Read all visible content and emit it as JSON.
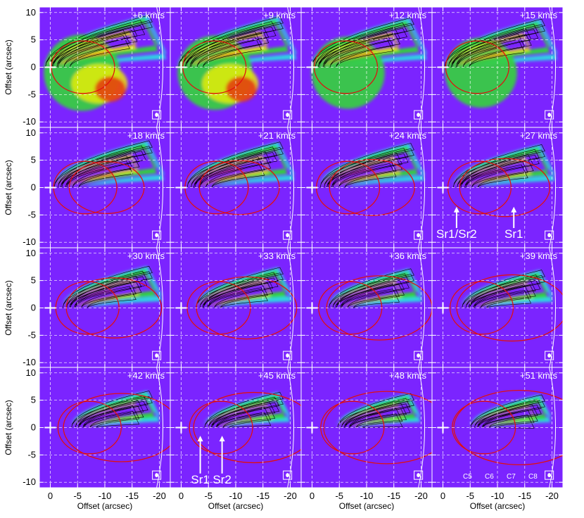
{
  "chart_data": {
    "type": "heatmap",
    "layout": {
      "rows": 4,
      "cols": 4
    },
    "xlabel": "Offset (arcsec)",
    "ylabel": "Offset (arcsec)",
    "xlim": [
      2,
      -22
    ],
    "ylim": [
      -11,
      11
    ],
    "xticks": [
      0,
      -5,
      -10,
      -15,
      -20
    ],
    "xtick_labels": [
      "0",
      "-5",
      "-10",
      "-15",
      "-20"
    ],
    "yticks": [
      -10,
      -5,
      0,
      5,
      10
    ],
    "ytick_labels": [
      "-10",
      "-5",
      "0",
      "5",
      "10"
    ],
    "grid": "dashed at ticks",
    "colors": {
      "background": "#7b24ff",
      "level_low": "#26e3e0",
      "level_mid": "#33d43a",
      "level_high": "#f0f000",
      "level_peak": "#e62a12",
      "ellipse": "#e01010",
      "contour": "#000000"
    },
    "panels": [
      {
        "label": "+6 km/s",
        "velocity": 6
      },
      {
        "label": "+9 km/s",
        "velocity": 9
      },
      {
        "label": "+12 km/s",
        "velocity": 12
      },
      {
        "label": "+15 km/s",
        "velocity": 15
      },
      {
        "label": "+18 km/s",
        "velocity": 18
      },
      {
        "label": "+21 km/s",
        "velocity": 21
      },
      {
        "label": "+24 km/s",
        "velocity": 24
      },
      {
        "label": "+27 km/s",
        "velocity": 27
      },
      {
        "label": "+30 km/s",
        "velocity": 30
      },
      {
        "label": "+33 km/s",
        "velocity": 33
      },
      {
        "label": "+36 km/s",
        "velocity": 36
      },
      {
        "label": "+39 km/s",
        "velocity": 39
      },
      {
        "label": "+42 km/s",
        "velocity": 42
      },
      {
        "label": "+45 km/s",
        "velocity": 45
      },
      {
        "label": "+48 km/s",
        "velocity": 48
      },
      {
        "label": "+51 km/s",
        "velocity": 51
      }
    ],
    "annotations": [
      {
        "panel": 7,
        "text": "Sr1/Sr2",
        "x": -2.5,
        "y": -9.2,
        "arrow_to": [
          -2.5,
          -3.5
        ]
      },
      {
        "panel": 7,
        "text": "Sr1",
        "x": -13,
        "y": -9.2,
        "arrow_to": [
          -13,
          -3.5
        ]
      },
      {
        "panel": 13,
        "text": "Sr1",
        "x": -3.5,
        "y": -10.2,
        "arrow_to": [
          -3.5,
          -1.5
        ]
      },
      {
        "panel": 13,
        "text": "Sr2",
        "x": -7.5,
        "y": -10.2,
        "arrow_to": [
          -7.5,
          -1.5
        ]
      },
      {
        "panel": 15,
        "text": "C5",
        "x": -4.5,
        "y": -9.3
      },
      {
        "panel": 15,
        "text": "C6",
        "x": -8.5,
        "y": -9.3
      },
      {
        "panel": 15,
        "text": "C7",
        "x": -12.5,
        "y": -9.3
      },
      {
        "panel": 15,
        "text": "C8",
        "x": -16.5,
        "y": -9.3
      }
    ]
  }
}
